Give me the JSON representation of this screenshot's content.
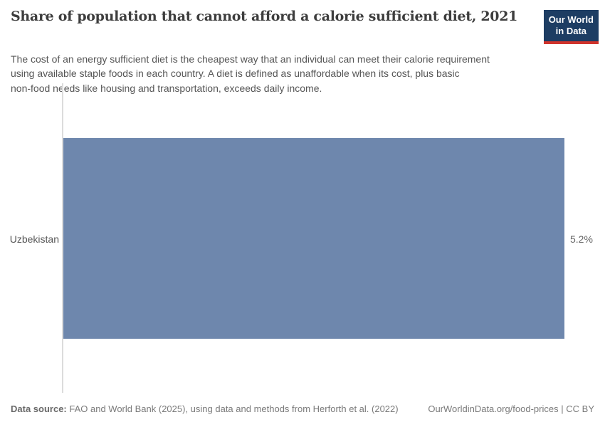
{
  "header": {
    "title": "Share of population that cannot afford a calorie sufficient diet, 2021",
    "subtitle": "The cost of an energy sufficient diet is the cheapest way that an individual can meet their calorie requirement\nusing available staple foods in each country. A diet is defined as unaffordable when its cost, plus basic\nnon-food needs like housing and transportation, exceeds daily income.",
    "logo": {
      "line1": "Our World",
      "line2": "in Data",
      "bg_color": "#1d3d63",
      "accent_color": "#d0342c"
    }
  },
  "chart_data": {
    "type": "bar",
    "orientation": "horizontal",
    "title": "Share of population that cannot afford a calorie sufficient diet, 2021",
    "categories": [
      "Uzbekistan"
    ],
    "values": [
      5.2
    ],
    "value_labels": [
      "5.2%"
    ],
    "unit": "%",
    "xlim": [
      0,
      5.2
    ],
    "grid": false,
    "legend": false,
    "bar_color": "#6e87ad",
    "axis_color": "#dcdcdc"
  },
  "footer": {
    "data_source_label": "Data source:",
    "data_source_text": "FAO and World Bank (2025), using data and methods from Herforth et al. (2022)",
    "link_text": "OurWorldinData.org/food-prices",
    "separator": "|",
    "license_text": "CC BY"
  }
}
